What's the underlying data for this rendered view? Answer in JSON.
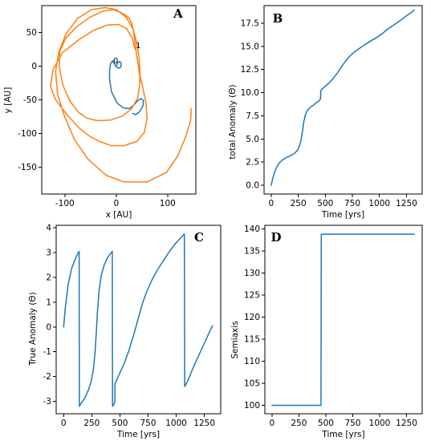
{
  "chart_data": [
    {
      "type": "line",
      "panel_label": "A",
      "xlabel": "x [AU]",
      "ylabel": "y [AU]",
      "xlim": [
        -145,
        155
      ],
      "ylim": [
        -190,
        90
      ],
      "xticks": [
        -100,
        0,
        100
      ],
      "yticks": [
        50,
        0,
        -50,
        -100,
        -150
      ],
      "annotations": [
        {
          "text": "0",
          "x": -1,
          "y": 4
        },
        {
          "text": "1",
          "x": 43,
          "y": 27
        }
      ],
      "series": [
        {
          "color": "#1f77b4",
          "points": [
            [
              0,
              0
            ],
            [
              3,
              5
            ],
            [
              7,
              7
            ],
            [
              10,
              4
            ],
            [
              9,
              -1
            ],
            [
              5,
              -3
            ],
            [
              0,
              -1
            ],
            [
              -4,
              4
            ],
            [
              -7,
              8
            ],
            [
              -11,
              4
            ],
            [
              -13,
              -6
            ],
            [
              -13,
              -20
            ],
            [
              -9,
              -38
            ],
            [
              2,
              -55
            ],
            [
              14,
              -62
            ],
            [
              26,
              -63
            ],
            [
              34,
              -58
            ],
            [
              41,
              -52
            ],
            [
              48,
              -48
            ],
            [
              53,
              -51
            ],
            [
              52,
              -59
            ],
            [
              45,
              -68
            ],
            [
              38,
              -72
            ],
            [
              32,
              -70
            ]
          ]
        },
        {
          "color": "#ff7f0e",
          "points": [
            [
              37,
              25
            ],
            [
              31,
              42
            ],
            [
              20,
              56
            ],
            [
              4,
              62
            ],
            [
              -18,
              61
            ],
            [
              -45,
              53
            ],
            [
              -75,
              38
            ],
            [
              -105,
              20
            ],
            [
              -123,
              -5
            ],
            [
              -128,
              -30
            ],
            [
              -118,
              -50
            ],
            [
              -95,
              -73
            ],
            [
              -72,
              -92
            ],
            [
              -50,
              -105
            ],
            [
              -32,
              -112
            ],
            [
              -10,
              -118
            ],
            [
              15,
              -118
            ],
            [
              40,
              -112
            ],
            [
              55,
              -98
            ],
            [
              60,
              -78
            ],
            [
              58,
              -55
            ],
            [
              52,
              -33
            ],
            [
              45,
              -10
            ],
            [
              40,
              15
            ],
            [
              36,
              38
            ],
            [
              34,
              50
            ],
            [
              31,
              62
            ],
            [
              25,
              72
            ],
            [
              11,
              79
            ],
            [
              -5,
              84
            ],
            [
              -25,
              82
            ],
            [
              -51,
              73
            ],
            [
              -78,
              58
            ],
            [
              -98,
              42
            ],
            [
              -110,
              22
            ],
            [
              -111,
              0
            ],
            [
              -104,
              -28
            ],
            [
              -90,
              -52
            ],
            [
              -74,
              -68
            ],
            [
              -58,
              -77
            ],
            [
              -37,
              -81
            ],
            [
              -11,
              -80
            ],
            [
              13,
              -74
            ],
            [
              30,
              -63
            ],
            [
              42,
              -47
            ],
            [
              46,
              -25
            ],
            [
              46,
              -5
            ],
            [
              44,
              15
            ],
            [
              40,
              35
            ],
            [
              33,
              55
            ],
            [
              19,
              73
            ],
            [
              0,
              84
            ],
            [
              -22,
              87
            ],
            [
              -48,
              84
            ],
            [
              -75,
              71
            ],
            [
              -98,
              48
            ],
            [
              -112,
              20
            ],
            [
              -118,
              -8
            ],
            [
              -114,
              -42
            ],
            [
              -101,
              -74
            ],
            [
              -82,
              -108
            ],
            [
              -55,
              -138
            ],
            [
              -20,
              -162
            ],
            [
              15,
              -172
            ],
            [
              60,
              -172
            ],
            [
              98,
              -158
            ],
            [
              120,
              -133
            ],
            [
              135,
              -105
            ],
            [
              145,
              -80
            ],
            [
              146,
              -63
            ]
          ]
        }
      ]
    },
    {
      "type": "line",
      "panel_label": "B",
      "xlabel": "Time [yrs]",
      "ylabel": "total Anomaly (Θ)",
      "xlim": [
        -66,
        1395
      ],
      "ylim": [
        -0.95,
        19.4
      ],
      "xticks": [
        0,
        250,
        500,
        750,
        1000,
        1250
      ],
      "yticks": [
        0.0,
        2.5,
        5.0,
        7.5,
        10.0,
        12.5,
        15.0,
        17.5
      ],
      "series": [
        {
          "color": "#1f77b4",
          "points": [
            [
              0,
              0
            ],
            [
              15,
              0.8
            ],
            [
              40,
              1.7
            ],
            [
              70,
              2.35
            ],
            [
              100,
              2.7
            ],
            [
              140,
              3.0
            ],
            [
              180,
              3.2
            ],
            [
              220,
              3.5
            ],
            [
              250,
              3.9
            ],
            [
              275,
              4.8
            ],
            [
              290,
              5.9
            ],
            [
              300,
              6.8
            ],
            [
              315,
              7.6
            ],
            [
              335,
              8.1
            ],
            [
              360,
              8.4
            ],
            [
              390,
              8.65
            ],
            [
              415,
              8.9
            ],
            [
              440,
              9.1
            ],
            [
              455,
              9.3
            ],
            [
              458,
              10.1
            ],
            [
              462,
              10.3
            ],
            [
              490,
              10.6
            ],
            [
              530,
              11.0
            ],
            [
              570,
              11.5
            ],
            [
              610,
              12.1
            ],
            [
              650,
              12.8
            ],
            [
              690,
              13.45
            ],
            [
              730,
              14.0
            ],
            [
              780,
              14.5
            ],
            [
              830,
              14.9
            ],
            [
              880,
              15.3
            ],
            [
              930,
              15.65
            ],
            [
              980,
              16.0
            ],
            [
              1030,
              16.4
            ],
            [
              1070,
              16.8
            ],
            [
              1100,
              17.05
            ],
            [
              1150,
              17.45
            ],
            [
              1200,
              17.85
            ],
            [
              1250,
              18.3
            ],
            [
              1300,
              18.7
            ],
            [
              1320,
              18.95
            ]
          ]
        }
      ]
    },
    {
      "type": "line",
      "panel_label": "C",
      "xlabel": "Time [yrs]",
      "ylabel": "True Anomaly (Θ)",
      "xlim": [
        -66,
        1395
      ],
      "ylim": [
        -3.5,
        4.1
      ],
      "xticks": [
        0,
        250,
        500,
        750,
        1000,
        1250
      ],
      "yticks": [
        4,
        3,
        2,
        1,
        0,
        -1,
        -2,
        -3
      ],
      "series": [
        {
          "color": "#1f77b4",
          "points": [
            [
              0,
              0
            ],
            [
              15,
              0.8
            ],
            [
              40,
              1.7
            ],
            [
              70,
              2.35
            ],
            [
              100,
              2.7
            ],
            [
              125,
              2.95
            ],
            [
              138,
              3.05
            ],
            [
              140,
              -3.2
            ],
            [
              160,
              -3.05
            ],
            [
              190,
              -2.85
            ],
            [
              220,
              -2.55
            ],
            [
              245,
              -2.2
            ],
            [
              265,
              -1.7
            ],
            [
              280,
              -1.0
            ],
            [
              292,
              -0.1
            ],
            [
              302,
              0.7
            ],
            [
              315,
              1.5
            ],
            [
              335,
              2.1
            ],
            [
              360,
              2.5
            ],
            [
              390,
              2.8
            ],
            [
              415,
              2.95
            ],
            [
              432,
              3.05
            ],
            [
              434,
              -3.2
            ],
            [
              450,
              -3.1
            ],
            [
              455,
              -3.0
            ],
            [
              456,
              -2.3
            ],
            [
              470,
              -2.15
            ],
            [
              500,
              -1.85
            ],
            [
              540,
              -1.45
            ],
            [
              580,
              -0.95
            ],
            [
              620,
              -0.35
            ],
            [
              660,
              0.3
            ],
            [
              700,
              0.95
            ],
            [
              740,
              1.45
            ],
            [
              790,
              1.95
            ],
            [
              840,
              2.35
            ],
            [
              890,
              2.7
            ],
            [
              940,
              3.05
            ],
            [
              990,
              3.35
            ],
            [
              1040,
              3.6
            ],
            [
              1072,
              3.75
            ],
            [
              1075,
              -2.4
            ],
            [
              1100,
              -2.2
            ],
            [
              1150,
              -1.65
            ],
            [
              1200,
              -1.15
            ],
            [
              1250,
              -0.65
            ],
            [
              1290,
              -0.25
            ],
            [
              1322,
              0.05
            ]
          ]
        }
      ]
    },
    {
      "type": "line",
      "panel_label": "D",
      "xlabel": "Time [yrs]",
      "ylabel": "Semiaxis",
      "xlim": [
        -66,
        1395
      ],
      "ylim": [
        98.1,
        140.8
      ],
      "xticks": [
        0,
        250,
        500,
        750,
        1000,
        1250
      ],
      "yticks": [
        140,
        135,
        130,
        125,
        120,
        115,
        110,
        105,
        100
      ],
      "series": [
        {
          "color": "#1f77b4",
          "points": [
            [
              0,
              100
            ],
            [
              455,
              100
            ],
            [
              458,
              138.8
            ],
            [
              1322,
              138.8
            ]
          ]
        }
      ]
    }
  ]
}
